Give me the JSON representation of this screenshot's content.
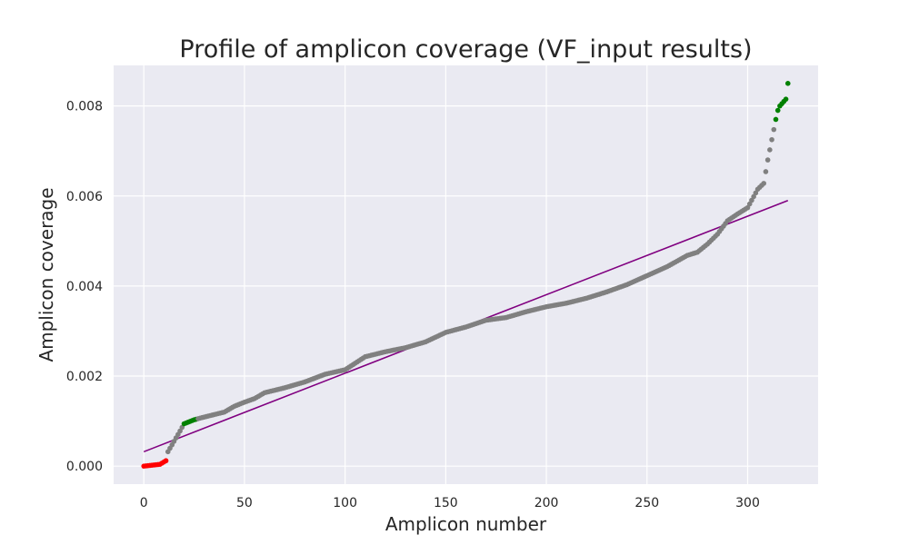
{
  "chart_data": {
    "type": "scatter",
    "title": "Profile of amplicon coverage (VF_input results)",
    "xlabel": "Amplicon number",
    "ylabel": "Amplicon coverage",
    "xlim": [
      -15,
      335
    ],
    "ylim": [
      -0.0004,
      0.0089
    ],
    "xticks": [
      0,
      50,
      100,
      150,
      200,
      250,
      300
    ],
    "xtick_labels": [
      "0",
      "50",
      "100",
      "150",
      "200",
      "250",
      "300"
    ],
    "yticks": [
      0.0,
      0.002,
      0.004,
      0.006,
      0.008
    ],
    "ytick_labels": [
      "0.000",
      "0.002",
      "0.004",
      "0.006",
      "0.008"
    ],
    "grid": true,
    "background": "#eaeaf2",
    "colors": {
      "low": "#ff0000",
      "normal": "#808080",
      "high": "#008000",
      "trend": "#800080"
    },
    "n_points": 321,
    "curve_knots": [
      [
        0,
        0.0
      ],
      [
        8,
        4e-05
      ],
      [
        11,
        0.00012
      ],
      [
        12,
        0.00032
      ],
      [
        15,
        0.00055
      ],
      [
        18,
        0.00078
      ],
      [
        20,
        0.00094
      ],
      [
        25,
        0.00103
      ],
      [
        30,
        0.00109
      ],
      [
        40,
        0.0012
      ],
      [
        45,
        0.00133
      ],
      [
        50,
        0.00142
      ],
      [
        55,
        0.0015
      ],
      [
        60,
        0.00163
      ],
      [
        70,
        0.00174
      ],
      [
        80,
        0.00187
      ],
      [
        90,
        0.00204
      ],
      [
        100,
        0.00214
      ],
      [
        110,
        0.00243
      ],
      [
        120,
        0.00254
      ],
      [
        130,
        0.00263
      ],
      [
        140,
        0.00276
      ],
      [
        150,
        0.00297
      ],
      [
        160,
        0.00309
      ],
      [
        170,
        0.00324
      ],
      [
        180,
        0.0033
      ],
      [
        190,
        0.00343
      ],
      [
        200,
        0.00354
      ],
      [
        210,
        0.00362
      ],
      [
        220,
        0.00373
      ],
      [
        230,
        0.00387
      ],
      [
        240,
        0.00403
      ],
      [
        250,
        0.00423
      ],
      [
        260,
        0.00443
      ],
      [
        270,
        0.00468
      ],
      [
        275,
        0.00475
      ],
      [
        280,
        0.00493
      ],
      [
        285,
        0.00515
      ],
      [
        290,
        0.00545
      ],
      [
        295,
        0.0056
      ],
      [
        300,
        0.00574
      ],
      [
        305,
        0.00615
      ],
      [
        308,
        0.00628
      ],
      [
        310,
        0.0068
      ],
      [
        312,
        0.00725
      ],
      [
        314,
        0.0077
      ],
      [
        315,
        0.0079
      ],
      [
        316,
        0.008
      ],
      [
        318,
        0.0081
      ],
      [
        319,
        0.00815
      ],
      [
        320,
        0.0085
      ]
    ],
    "highlight_ranges": [
      {
        "from": 0,
        "to": 11,
        "color": "low"
      },
      {
        "from": 20,
        "to": 26,
        "color": "high"
      },
      {
        "from": 314,
        "to": 320,
        "color": "high"
      }
    ],
    "trend_line": {
      "x": [
        0,
        320
      ],
      "y": [
        0.00032,
        0.0059
      ]
    }
  }
}
